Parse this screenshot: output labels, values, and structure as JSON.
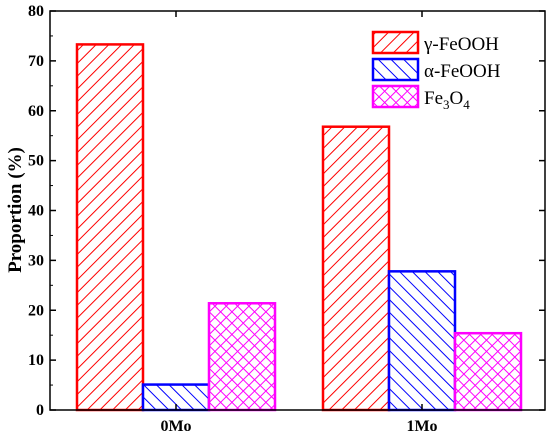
{
  "chart_data": {
    "type": "bar",
    "categories": [
      "0Mo",
      "1Mo"
    ],
    "series": [
      {
        "name": "γ-FeOOH",
        "values": [
          73.3,
          56.8
        ],
        "color": "#ff0000",
        "pattern": "diagonal-down"
      },
      {
        "name": "α-FeOOH",
        "values": [
          5.1,
          27.8
        ],
        "color": "#0000ff",
        "pattern": "diagonal-up"
      },
      {
        "name": "Fe3O4",
        "name_parts": [
          "Fe",
          "3",
          "O",
          "4"
        ],
        "values": [
          21.4,
          15.4
        ],
        "color": "#ff00ff",
        "pattern": "crosshatch"
      }
    ],
    "ylabel": "Proportion (%)",
    "xlabel": "",
    "ylim": [
      0,
      80
    ],
    "yticks": [
      "0",
      "10",
      "20",
      "30",
      "40",
      "50",
      "60",
      "70",
      "80"
    ],
    "grid": false,
    "legend": "top-right"
  }
}
